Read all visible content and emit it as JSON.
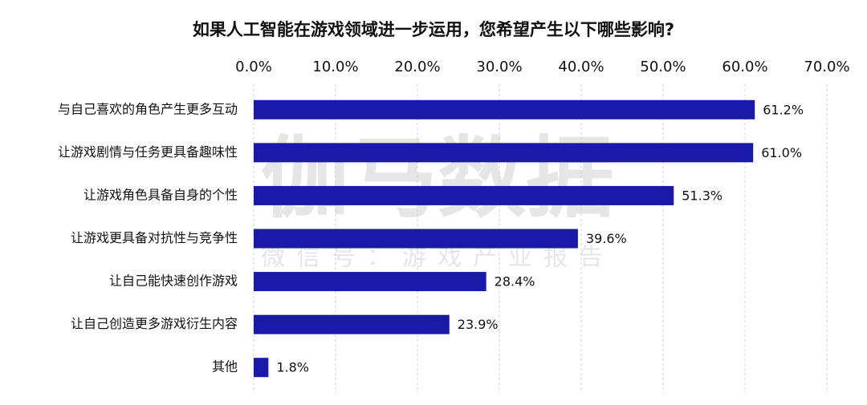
{
  "chart_data": {
    "type": "hbar",
    "title": "如果人工智能在游戏领域进一步运用，您希望产生以下哪些影响?",
    "categories": [
      "与自己喜欢的角色产生更多互动",
      "让游戏剧情与任务更具备趣味性",
      "让游戏角色具备自身的个性",
      "让游戏更具备对抗性与竞争性",
      "让自己能快速创作游戏",
      "让自己创造更多游戏衍生内容",
      "其他"
    ],
    "values": [
      61.2,
      61.0,
      51.3,
      39.6,
      28.4,
      23.9,
      1.8
    ],
    "value_labels": [
      "61.2%",
      "61.0%",
      "51.3%",
      "39.6%",
      "28.4%",
      "23.9%",
      "1.8%"
    ],
    "color": "#1a1aa8",
    "xlim": [
      0,
      70
    ],
    "xticks": [
      {
        "value": 0,
        "label": "0.0%"
      },
      {
        "value": 10,
        "label": "10.0%"
      },
      {
        "value": 20,
        "label": "20.0%"
      },
      {
        "value": 30,
        "label": "30.0%"
      },
      {
        "value": 40,
        "label": "40.0%"
      },
      {
        "value": 50,
        "label": "50.0%"
      },
      {
        "value": 60,
        "label": "60.0%"
      },
      {
        "value": 70,
        "label": "70.0%"
      }
    ],
    "grid": true
  },
  "watermark": {
    "main": "伽马数据",
    "sub": "微信号：游戏产业报告"
  }
}
